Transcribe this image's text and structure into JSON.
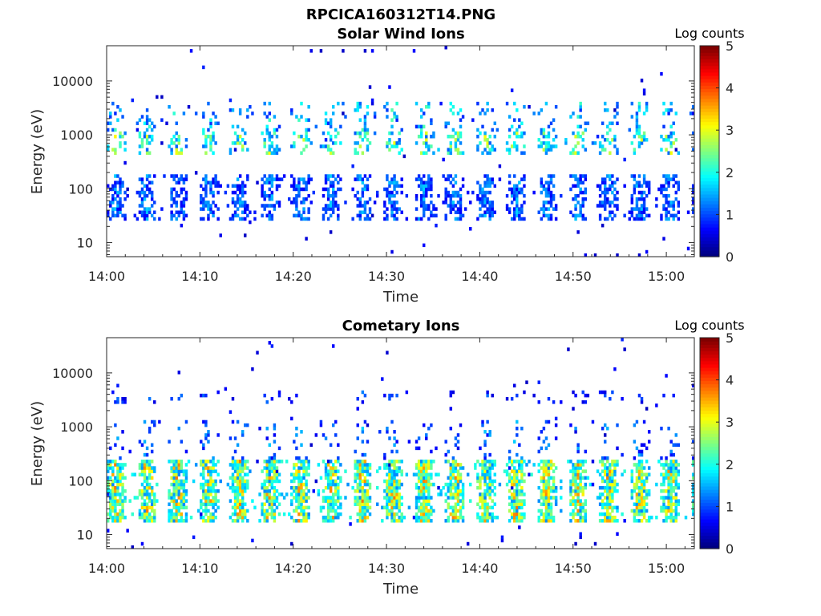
{
  "figure_title": "RPCICA160312T14.PNG",
  "chart_data": [
    {
      "type": "heatmap",
      "title": "Solar Wind Ions",
      "xlabel": "Time",
      "ylabel": "Energy (eV)",
      "x_ticks": [
        "14:00",
        "14:10",
        "14:20",
        "14:30",
        "14:40",
        "14:50",
        "15:00"
      ],
      "x_range_minutes": [
        0,
        63
      ],
      "y_ticks": [
        "10",
        "100",
        "1000",
        "10000"
      ],
      "y_scale": "log",
      "y_range": [
        5.5,
        45000
      ],
      "colorbar": {
        "label": "Log counts",
        "ticks": [
          "0",
          "1",
          "2",
          "3",
          "4",
          "5"
        ],
        "range": [
          0,
          5
        ],
        "colormap": "jet"
      },
      "sweep_period_minutes": 3.3,
      "bands": [
        {
          "e_min": 25,
          "e_max": 180,
          "level": 1.0,
          "density": 0.6
        },
        {
          "e_min": 450,
          "e_max": 1100,
          "level": 1.9,
          "density": 0.4
        },
        {
          "e_min": 1100,
          "e_max": 4200,
          "level": 1.4,
          "density": 0.22
        }
      ]
    },
    {
      "type": "heatmap",
      "title": "Cometary Ions",
      "xlabel": "Time",
      "ylabel": "Energy (eV)",
      "x_ticks": [
        "14:00",
        "14:10",
        "14:20",
        "14:30",
        "14:40",
        "14:50",
        "15:00"
      ],
      "x_range_minutes": [
        0,
        63
      ],
      "y_ticks": [
        "10",
        "100",
        "1000",
        "10000"
      ],
      "y_scale": "log",
      "y_range": [
        5.5,
        45000
      ],
      "colorbar": {
        "label": "Log counts",
        "ticks": [
          "0",
          "1",
          "2",
          "3",
          "4",
          "5"
        ],
        "range": [
          0,
          5
        ],
        "colormap": "jet"
      },
      "sweep_period_minutes": 3.3,
      "bands": [
        {
          "e_min": 18,
          "e_max": 260,
          "level": 2.3,
          "density": 0.9
        },
        {
          "e_min": 260,
          "e_max": 1300,
          "level": 1.0,
          "density": 0.15
        },
        {
          "e_min": 2800,
          "e_max": 4500,
          "level": 0.8,
          "density": 0.12
        }
      ]
    }
  ]
}
